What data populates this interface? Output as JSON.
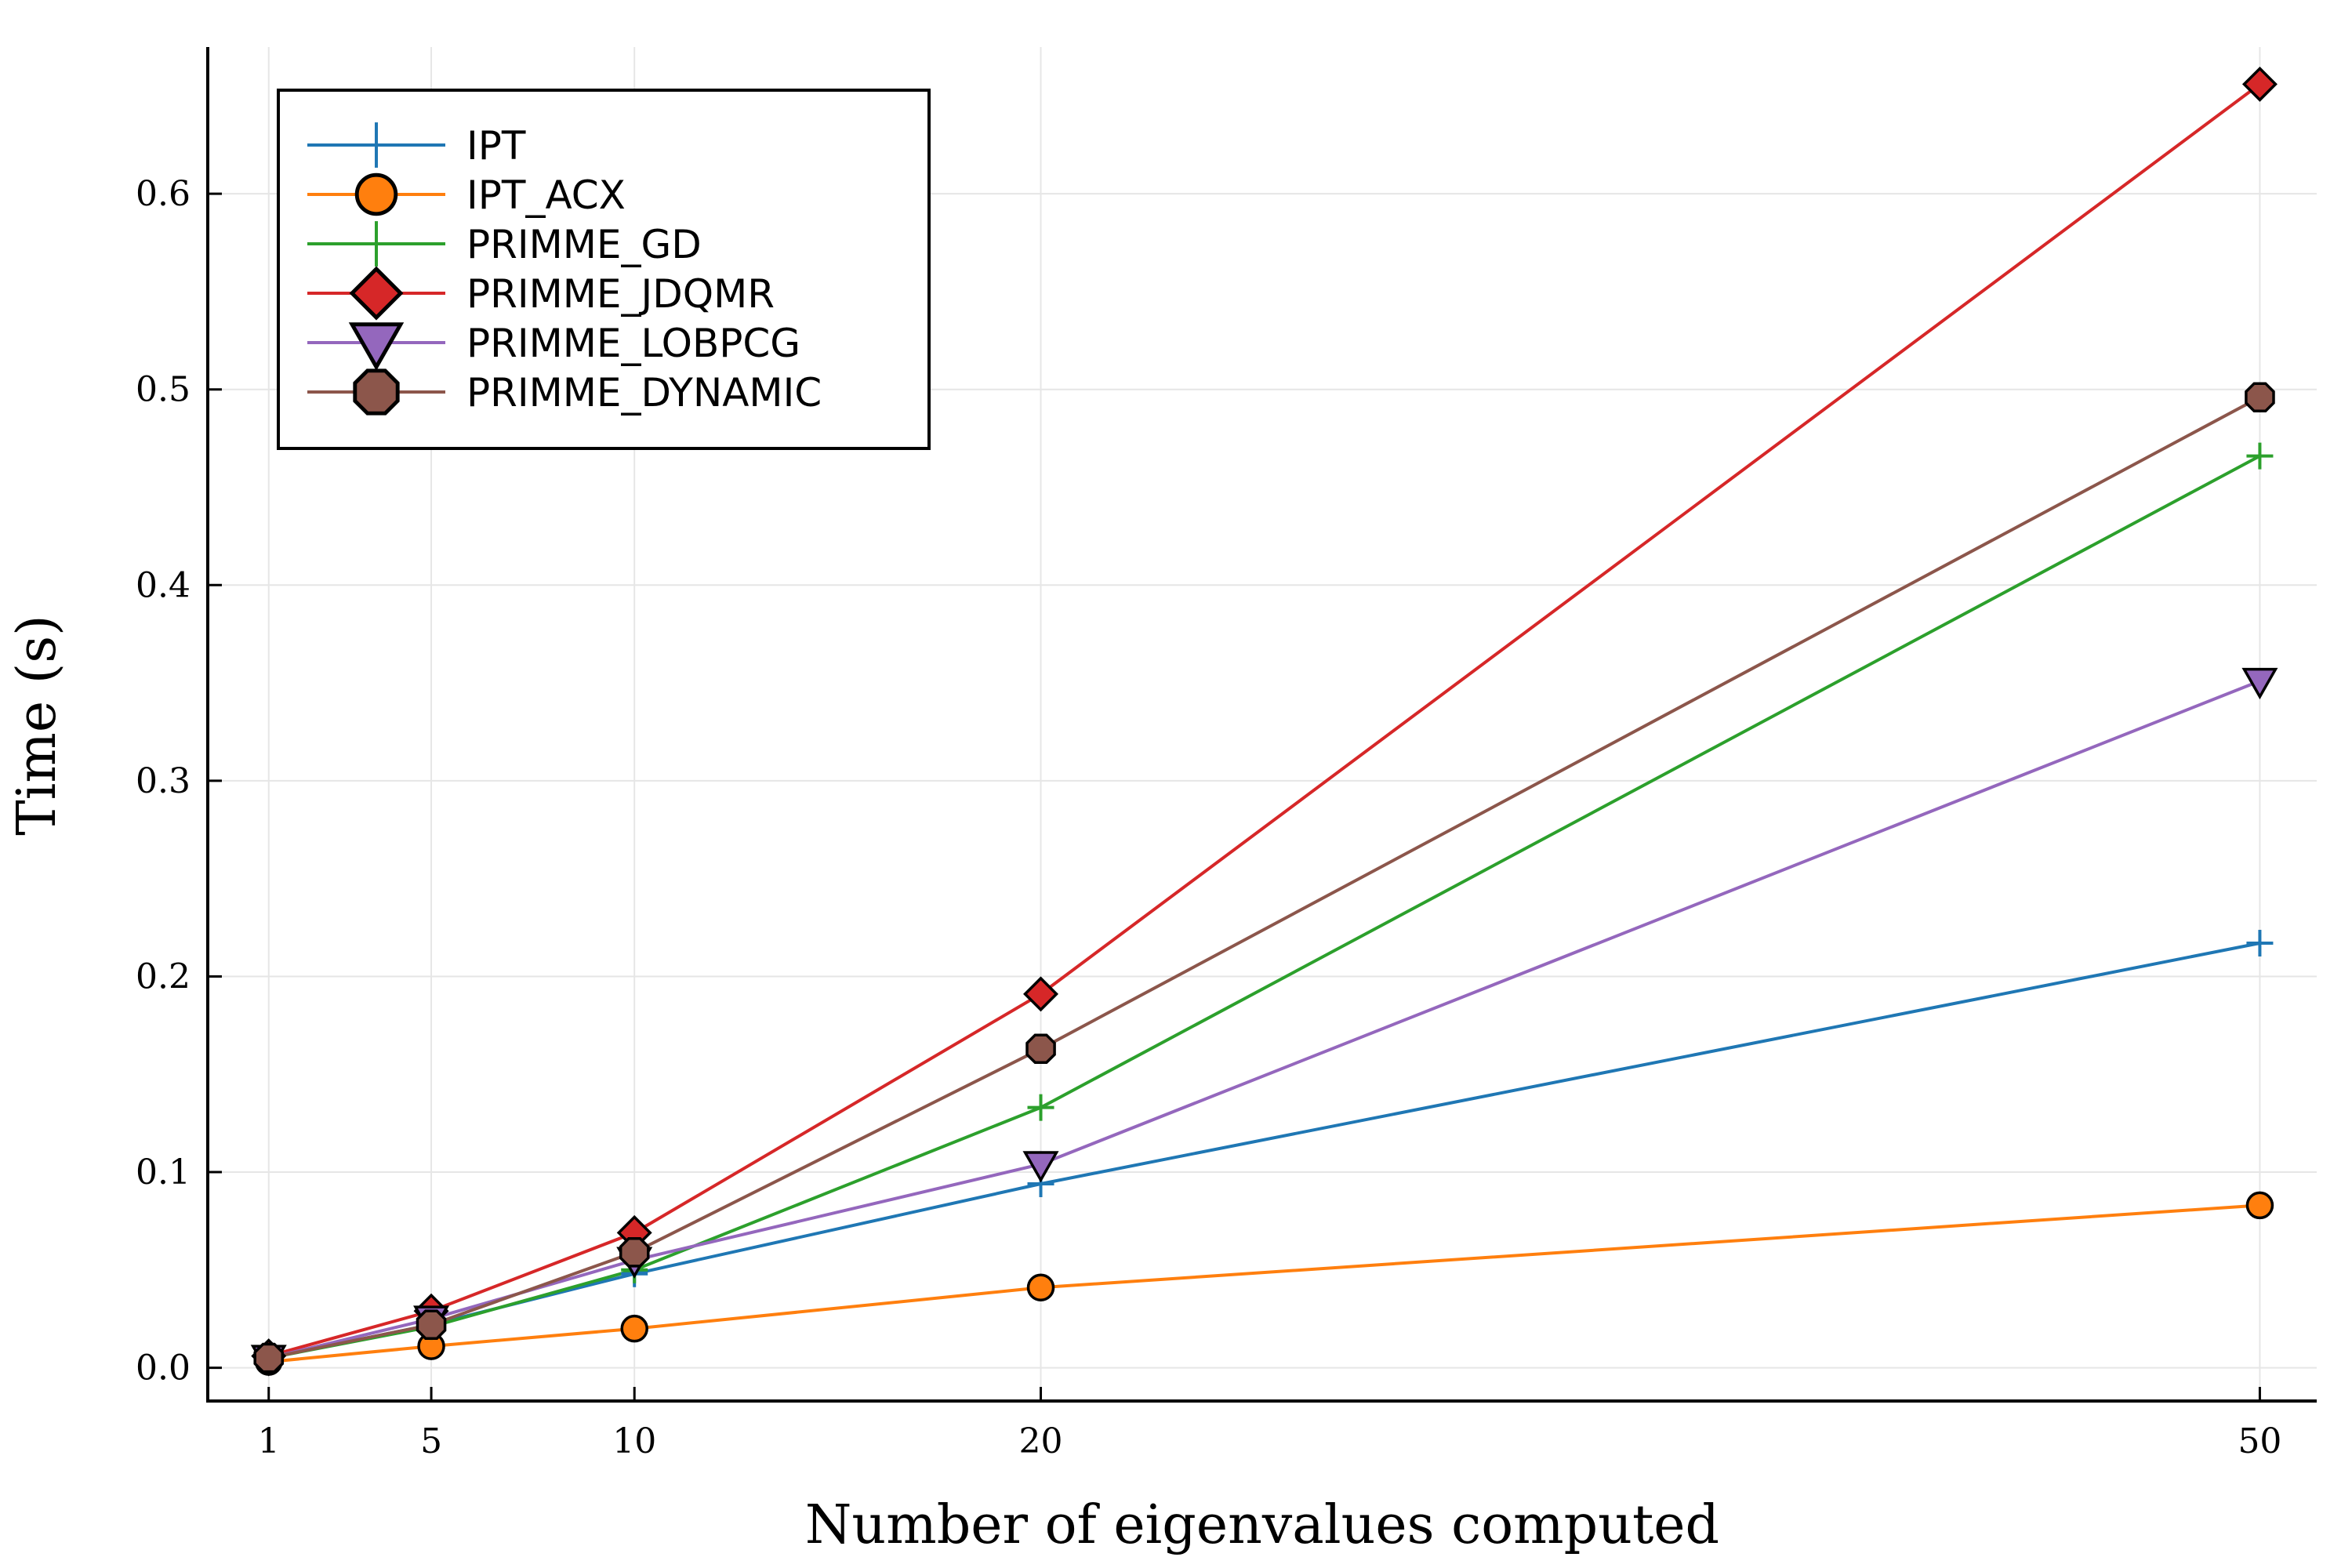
{
  "chart_data": {
    "type": "line",
    "xlabel": "Number of eigenvalues computed",
    "ylabel": "Time (s)",
    "x": [
      1,
      5,
      10,
      20,
      50
    ],
    "xlim": [
      -0.5,
      51.4
    ],
    "ylim": [
      -0.017,
      0.675
    ],
    "xticks": [
      1,
      5,
      10,
      20,
      50
    ],
    "xtick_labels": [
      "1",
      "5",
      "10",
      "20",
      "50"
    ],
    "yticks": [
      0.0,
      0.1,
      0.2,
      0.3,
      0.4,
      0.5,
      0.6
    ],
    "ytick_labels": [
      "0.0",
      "0.1",
      "0.2",
      "0.3",
      "0.4",
      "0.5",
      "0.6"
    ],
    "grid": true,
    "legend_position": "top-left",
    "series": [
      {
        "name": "IPT",
        "color": "#1f77b4",
        "marker": "cross",
        "values": [
          0.005,
          0.022,
          0.048,
          0.094,
          0.217
        ]
      },
      {
        "name": "IPT_ACX",
        "color": "#ff7f0e",
        "marker": "circle",
        "values": [
          0.003,
          0.011,
          0.02,
          0.041,
          0.083
        ]
      },
      {
        "name": "PRIMME_GD",
        "color": "#2ca02c",
        "marker": "cross",
        "values": [
          0.005,
          0.021,
          0.05,
          0.133,
          0.466
        ]
      },
      {
        "name": "PRIMME_JDQMR",
        "color": "#d62728",
        "marker": "diamond",
        "values": [
          0.006,
          0.029,
          0.069,
          0.191,
          0.656
        ]
      },
      {
        "name": "PRIMME_LOBPCG",
        "color": "#9467bd",
        "marker": "triangle-down",
        "values": [
          0.005,
          0.025,
          0.055,
          0.104,
          0.351
        ]
      },
      {
        "name": "PRIMME_DYNAMIC",
        "color": "#8c564b",
        "marker": "octagon",
        "values": [
          0.005,
          0.022,
          0.059,
          0.163,
          0.496
        ]
      }
    ]
  }
}
